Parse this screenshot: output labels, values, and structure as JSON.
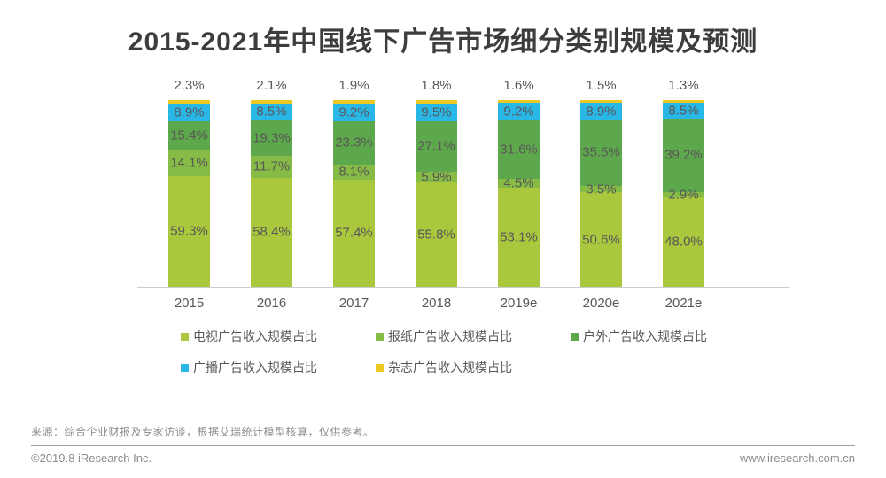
{
  "title": "2015-2021年中国线下广告市场细分类别规模及预测",
  "chart_data": {
    "type": "bar",
    "stacked": true,
    "unit": "%",
    "ylim": [
      0,
      100
    ],
    "grid": false,
    "legend_position": "bottom",
    "categories": [
      "2015",
      "2016",
      "2017",
      "2018",
      "2019e",
      "2020e",
      "2021e"
    ],
    "series": [
      {
        "name": "电视广告收入规模占比",
        "color": "#a9c83d",
        "values": [
          59.3,
          58.4,
          57.4,
          55.8,
          53.1,
          50.6,
          48.0
        ]
      },
      {
        "name": "报纸广告收入规模占比",
        "color": "#86bb45",
        "values": [
          14.1,
          11.7,
          8.1,
          5.9,
          4.5,
          3.5,
          2.9
        ]
      },
      {
        "name": "户外广告收入规模占比",
        "color": "#5da84c",
        "values": [
          15.4,
          19.3,
          23.3,
          27.1,
          31.6,
          35.5,
          39.2
        ]
      },
      {
        "name": "广播广告收入规模占比",
        "color": "#29b7e8",
        "values": [
          8.9,
          8.5,
          9.2,
          9.5,
          9.2,
          8.9,
          8.5
        ]
      },
      {
        "name": "杂志广告收入规模占比",
        "color": "#ecc825",
        "values": [
          2.3,
          2.1,
          1.9,
          1.8,
          1.6,
          1.5,
          1.3
        ]
      }
    ],
    "label_color": "#595757"
  },
  "footer": {
    "source": "来源：综合企业财报及专家访谈，根据艾瑞统计模型核算，仅供参考。",
    "copyright": "©2019.8 iResearch Inc.",
    "website": "www.iresearch.com.cn"
  }
}
